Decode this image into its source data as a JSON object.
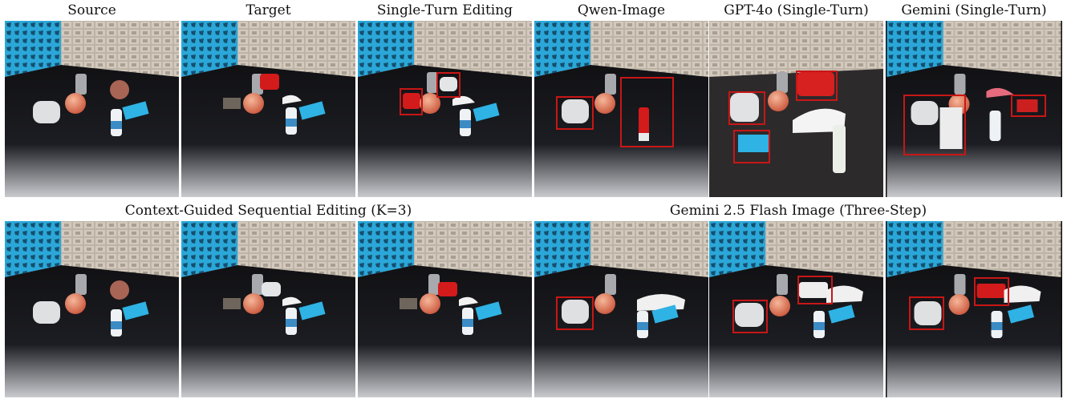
{
  "row1": {
    "labels": [
      "Source",
      "Target",
      "Single-Turn Editing",
      "Qwen-Image",
      "GPT-4o (Single-Turn)",
      "Gemini (Single-Turn)"
    ]
  },
  "row2": {
    "left_title": "Context-Guided Sequential Editing (K=3)",
    "right_title": "Gemini 2.5 Flash Image (Three-Step)"
  }
}
